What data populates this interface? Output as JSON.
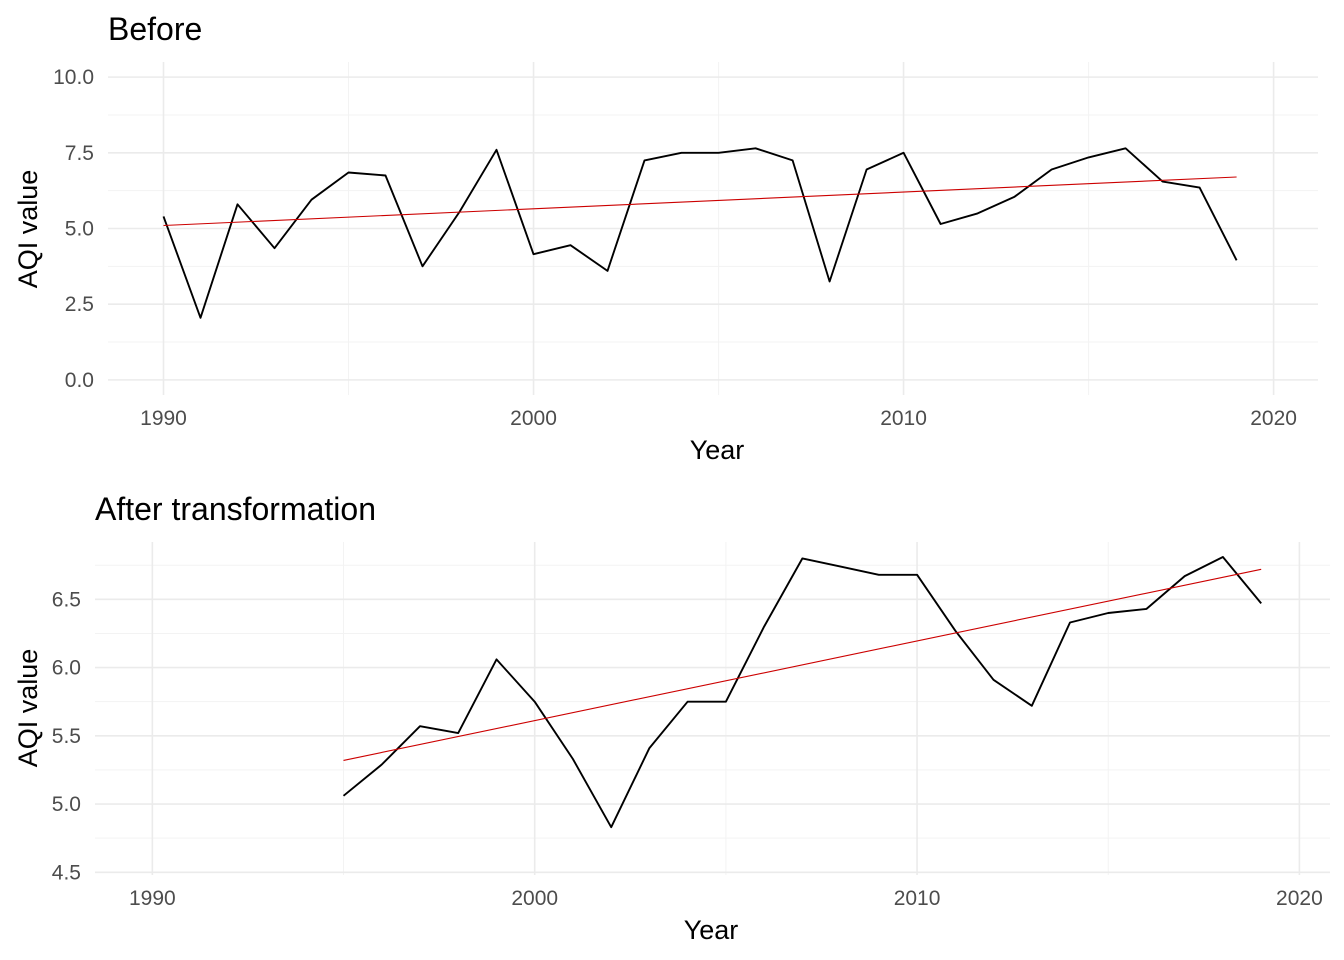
{
  "chart_data": [
    {
      "type": "line",
      "title": "Before",
      "xlabel": "Year",
      "ylabel": "AQI value",
      "xlim": [
        1988.5,
        2021.2
      ],
      "ylim": [
        -0.5,
        10.5
      ],
      "x_ticks": [
        1990,
        2000,
        2010,
        2020
      ],
      "x_tick_labels": [
        "1990",
        "2000",
        "2010",
        "2020"
      ],
      "y_ticks": [
        0,
        2.5,
        5,
        7.5,
        10
      ],
      "y_tick_labels": [
        "0.0",
        "2.5",
        "5.0",
        "7.5",
        "10.0"
      ],
      "grid": true,
      "series": [
        {
          "color": "#000000",
          "x": [
            1990,
            1991,
            1992,
            1993,
            1994,
            1995,
            1996,
            1997,
            1998,
            1999,
            2000,
            2001,
            2002,
            2003,
            2004,
            2005,
            2006,
            2007,
            2008,
            2009,
            2010,
            2011,
            2012,
            2013,
            2014,
            2015,
            2016,
            2017,
            2018,
            2019
          ],
          "values": [
            5.4,
            2.05,
            5.8,
            4.35,
            5.95,
            6.85,
            6.75,
            3.75,
            5.55,
            7.6,
            4.15,
            4.45,
            3.6,
            7.25,
            7.5,
            7.5,
            7.65,
            7.25,
            3.25,
            6.95,
            7.5,
            5.15,
            5.5,
            6.05,
            6.95,
            7.35,
            7.65,
            6.55,
            6.35,
            3.95
          ]
        },
        {
          "color": "#cc0000",
          "x": [
            1990,
            2019
          ],
          "values": [
            5.1,
            6.7
          ]
        }
      ]
    },
    {
      "type": "line",
      "title": "After transformation",
      "xlabel": "Year",
      "ylabel": "AQI value",
      "xlim": [
        1988.5,
        2020.8
      ],
      "ylim": [
        4.48,
        6.92
      ],
      "x_ticks": [
        1990,
        2000,
        2010,
        2020
      ],
      "x_tick_labels": [
        "1990",
        "2000",
        "2010",
        "2020"
      ],
      "y_ticks": [
        4.5,
        5.0,
        5.5,
        6.0,
        6.5
      ],
      "y_tick_labels": [
        "4.5",
        "5.0",
        "5.5",
        "6.0",
        "6.5"
      ],
      "grid": true,
      "series": [
        {
          "color": "#000000",
          "x": [
            1995,
            1996,
            1997,
            1998,
            1999,
            2000,
            2001,
            2002,
            2003,
            2004,
            2005,
            2006,
            2007,
            2008,
            2009,
            2010,
            2011,
            2012,
            2013,
            2014,
            2015,
            2016,
            2017,
            2018,
            2019
          ],
          "values": [
            5.06,
            5.29,
            5.57,
            5.52,
            6.06,
            5.75,
            5.33,
            4.83,
            5.41,
            5.75,
            5.75,
            6.3,
            6.8,
            6.74,
            6.68,
            6.68,
            6.27,
            5.91,
            5.72,
            6.33,
            6.4,
            6.43,
            6.67,
            6.81,
            6.47
          ]
        },
        {
          "color": "#cc0000",
          "x": [
            1995,
            2019
          ],
          "values": [
            5.32,
            6.72
          ]
        }
      ]
    }
  ]
}
